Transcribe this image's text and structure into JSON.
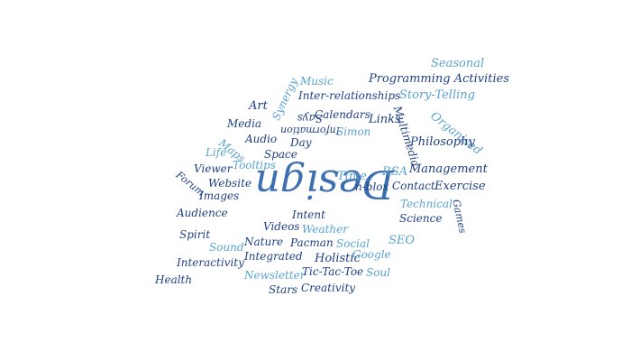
{
  "colors": {
    "dark": "#1f3f84",
    "light": "#5aa3cf",
    "mid": "#3d6fb0"
  },
  "words": [
    {
      "text": "Design",
      "tone": "mid"
    },
    {
      "text": "Seasonal",
      "tone": "light"
    },
    {
      "text": "Music",
      "tone": "light"
    },
    {
      "text": "Programming Activities",
      "tone": "dark"
    },
    {
      "text": "Inter-relationships",
      "tone": "dark"
    },
    {
      "text": "Story-Telling",
      "tone": "light"
    },
    {
      "text": "Art",
      "tone": "dark"
    },
    {
      "text": "Synergy",
      "tone": "light"
    },
    {
      "text": "Says",
      "tone": "dark"
    },
    {
      "text": "Calendars",
      "tone": "dark"
    },
    {
      "text": "Links",
      "tone": "dark"
    },
    {
      "text": "Multimedia",
      "tone": "dark"
    },
    {
      "text": "Organised",
      "tone": "light"
    },
    {
      "text": "Media",
      "tone": "dark"
    },
    {
      "text": "Information",
      "tone": "dark"
    },
    {
      "text": "Simon",
      "tone": "light"
    },
    {
      "text": "Audio",
      "tone": "dark"
    },
    {
      "text": "Day",
      "tone": "dark"
    },
    {
      "text": "Philosophy",
      "tone": "dark"
    },
    {
      "text": "Life",
      "tone": "light"
    },
    {
      "text": "Maps",
      "tone": "light"
    },
    {
      "text": "Space",
      "tone": "dark"
    },
    {
      "text": "Tooltips",
      "tone": "light"
    },
    {
      "text": "Viewer",
      "tone": "dark"
    },
    {
      "text": "RSA",
      "tone": "light"
    },
    {
      "text": "Management",
      "tone": "dark"
    },
    {
      "text": "Forum",
      "tone": "dark"
    },
    {
      "text": "Website",
      "tone": "dark"
    },
    {
      "text": "Time",
      "tone": "light"
    },
    {
      "text": "n-blox",
      "tone": "dark"
    },
    {
      "text": "Contact",
      "tone": "dark"
    },
    {
      "text": "Exercise",
      "tone": "dark"
    },
    {
      "text": "Images",
      "tone": "dark"
    },
    {
      "text": "Technical",
      "tone": "light"
    },
    {
      "text": "Games",
      "tone": "dark"
    },
    {
      "text": "Audience",
      "tone": "dark"
    },
    {
      "text": "Intent",
      "tone": "dark"
    },
    {
      "text": "Science",
      "tone": "dark"
    },
    {
      "text": "Videos",
      "tone": "dark"
    },
    {
      "text": "Weather",
      "tone": "light"
    },
    {
      "text": "Spirit",
      "tone": "dark"
    },
    {
      "text": "Nature",
      "tone": "dark"
    },
    {
      "text": "Pacman",
      "tone": "dark"
    },
    {
      "text": "Social",
      "tone": "light"
    },
    {
      "text": "SEO",
      "tone": "light"
    },
    {
      "text": "Sound",
      "tone": "light"
    },
    {
      "text": "Integrated",
      "tone": "dark"
    },
    {
      "text": "Holistic",
      "tone": "dark"
    },
    {
      "text": "Google",
      "tone": "light"
    },
    {
      "text": "Interactivity",
      "tone": "dark"
    },
    {
      "text": "Newsletter",
      "tone": "light"
    },
    {
      "text": "Tic-Tac-Toe",
      "tone": "dark"
    },
    {
      "text": "Soul",
      "tone": "light"
    },
    {
      "text": "Health",
      "tone": "dark"
    },
    {
      "text": "Stars",
      "tone": "dark"
    },
    {
      "text": "Creativity",
      "tone": "dark"
    }
  ]
}
